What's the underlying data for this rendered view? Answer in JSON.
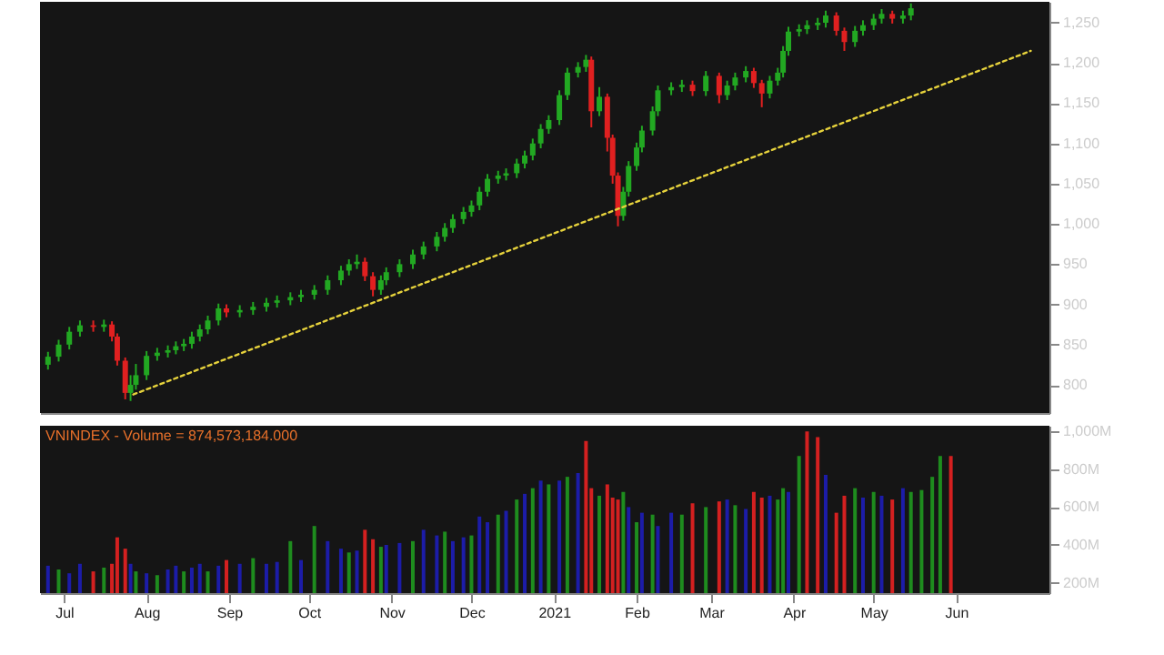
{
  "chart_data": [
    {
      "type": "candlestick",
      "tick_labels": "y",
      "xlim": [
        "2020-06-22",
        "2021-07-06"
      ],
      "colors": [
        "#22a822",
        "#22a822",
        "#22a822",
        "#22a822",
        "#e02020",
        "#22a822",
        "#e02020",
        "#e02020",
        "#e02020",
        "#22a822",
        "#22a822",
        "#22a822",
        "#22a822",
        "#22a822",
        "#22a822",
        "#22a822",
        "#22a822",
        "#22a822",
        "#22a822",
        "#22a822",
        "#e02020",
        "#22a822",
        "#22a822",
        "#22a822",
        "#22a822",
        "#22a822",
        "#22a822",
        "#22a822",
        "#22a822",
        "#22a822",
        "#22a822",
        "#22a822",
        "#e02020",
        "#e02020",
        "#22a822",
        "#22a822",
        "#22a822",
        "#22a822",
        "#22a822",
        "#22a822",
        "#22a822",
        "#22a822",
        "#22a822",
        "#22a822",
        "#22a822",
        "#22a822",
        "#22a822",
        "#22a822",
        "#22a822",
        "#22a822",
        "#22a822",
        "#22a822",
        "#22a822",
        "#22a822",
        "#22a822",
        "#22a822",
        "#22a822",
        "#e02020",
        "#22a822",
        "#e02020",
        "#e02020",
        "#e02020",
        "#22a822",
        "#22a822",
        "#22a822",
        "#22a822",
        "#22a822",
        "#22a822",
        "#22a822",
        "#22a822",
        "#e02020",
        "#22a822",
        "#e02020",
        "#22a822",
        "#22a822",
        "#22a822",
        "#e02020",
        "#e02020",
        "#22a822",
        "#22a822",
        "#22a822",
        "#22a822",
        "#22a822",
        "#22a822",
        "#22a822",
        "#22a822",
        "#e02020",
        "#e02020",
        "#22a822",
        "#22a822",
        "#22a822",
        "#22a822",
        "#e02020",
        "#22a822",
        "#22a822"
      ],
      "ylim": [
        765,
        1276
      ],
      "yticks": [
        800,
        850,
        900,
        950,
        {
          "value": 1000,
          "label": "1,000"
        },
        {
          "value": 1050,
          "label": "1,050"
        },
        {
          "value": 1100,
          "label": "1,100"
        },
        {
          "value": 1150,
          "label": "1,150"
        },
        {
          "value": 1200,
          "label": "1,200"
        },
        {
          "value": 1250,
          "label": "1,250"
        }
      ],
      "x": [
        "2020-06-25",
        "2020-06-29",
        "2020-07-03",
        "2020-07-07",
        "2020-07-12",
        "2020-07-16",
        "2020-07-19",
        "2020-07-21",
        "2020-07-24",
        "2020-07-26",
        "2020-07-28",
        "2020-08-01",
        "2020-08-05",
        "2020-08-09",
        "2020-08-12",
        "2020-08-15",
        "2020-08-18",
        "2020-08-21",
        "2020-08-24",
        "2020-08-28",
        "2020-08-31",
        "2020-09-05",
        "2020-09-10",
        "2020-09-15",
        "2020-09-19",
        "2020-09-24",
        "2020-09-28",
        "2020-10-03",
        "2020-10-08",
        "2020-10-13",
        "2020-10-16",
        "2020-10-19",
        "2020-10-22",
        "2020-10-25",
        "2020-10-28",
        "2020-10-30",
        "2020-11-04",
        "2020-11-09",
        "2020-11-13",
        "2020-11-18",
        "2020-11-21",
        "2020-11-24",
        "2020-11-28",
        "2020-12-01",
        "2020-12-04",
        "2020-12-07",
        "2020-12-11",
        "2020-12-14",
        "2020-12-18",
        "2020-12-21",
        "2020-12-24",
        "2020-12-27",
        "2020-12-30",
        "2021-01-03",
        "2021-01-06",
        "2021-01-10",
        "2021-01-13",
        "2021-01-15",
        "2021-01-18",
        "2021-01-21",
        "2021-01-23",
        "2021-01-25",
        "2021-01-27",
        "2021-01-29",
        "2021-02-01",
        "2021-02-03",
        "2021-02-07",
        "2021-02-09",
        "2021-02-14",
        "2021-02-18",
        "2021-02-22",
        "2021-02-27",
        "2021-03-04",
        "2021-03-07",
        "2021-03-10",
        "2021-03-14",
        "2021-03-17",
        "2021-03-20",
        "2021-03-23",
        "2021-03-26",
        "2021-03-28",
        "2021-03-30",
        "2021-04-03",
        "2021-04-06",
        "2021-04-10",
        "2021-04-13",
        "2021-04-17",
        "2021-04-20",
        "2021-04-24",
        "2021-04-27",
        "2021-05-01",
        "2021-05-04",
        "2021-05-08",
        "2021-05-12",
        "2021-05-15"
      ],
      "ohlc": [
        [
          825,
          841,
          819,
          835
        ],
        [
          835,
          856,
          829,
          850
        ],
        [
          850,
          872,
          844,
          866
        ],
        [
          866,
          880,
          860,
          874
        ],
        [
          874,
          880,
          866,
          872
        ],
        [
          872,
          881,
          866,
          875
        ],
        [
          875,
          879,
          854,
          860
        ],
        [
          860,
          864,
          824,
          830
        ],
        [
          830,
          834,
          782,
          790
        ],
        [
          790,
          812,
          780,
          800
        ],
        [
          800,
          826,
          794,
          812
        ],
        [
          812,
          842,
          806,
          836
        ],
        [
          836,
          846,
          830,
          840
        ],
        [
          840,
          849,
          834,
          843
        ],
        [
          843,
          854,
          838,
          848
        ],
        [
          848,
          857,
          842,
          851
        ],
        [
          851,
          866,
          845,
          860
        ],
        [
          860,
          875,
          854,
          869
        ],
        [
          869,
          886,
          863,
          880
        ],
        [
          880,
          901,
          874,
          895
        ],
        [
          895,
          900,
          884,
          890
        ],
        [
          890,
          899,
          884,
          893
        ],
        [
          893,
          903,
          887,
          897
        ],
        [
          897,
          908,
          891,
          902
        ],
        [
          902,
          911,
          896,
          905
        ],
        [
          905,
          915,
          899,
          909
        ],
        [
          909,
          918,
          903,
          912
        ],
        [
          912,
          924,
          906,
          918
        ],
        [
          918,
          936,
          912,
          930
        ],
        [
          930,
          948,
          924,
          942
        ],
        [
          942,
          956,
          936,
          950
        ],
        [
          950,
          962,
          944,
          953
        ],
        [
          953,
          958,
          929,
          935
        ],
        [
          935,
          940,
          910,
          918
        ],
        [
          918,
          936,
          912,
          930
        ],
        [
          930,
          946,
          924,
          940
        ],
        [
          940,
          956,
          934,
          950
        ],
        [
          950,
          968,
          944,
          962
        ],
        [
          962,
          978,
          956,
          972
        ],
        [
          972,
          990,
          966,
          984
        ],
        [
          984,
          1001,
          978,
          995
        ],
        [
          995,
          1012,
          989,
          1006
        ],
        [
          1006,
          1021,
          1000,
          1015
        ],
        [
          1015,
          1029,
          1009,
          1023
        ],
        [
          1023,
          1046,
          1017,
          1040
        ],
        [
          1040,
          1062,
          1034,
          1056
        ],
        [
          1056,
          1066,
          1050,
          1060
        ],
        [
          1060,
          1069,
          1054,
          1063
        ],
        [
          1063,
          1081,
          1057,
          1075
        ],
        [
          1075,
          1091,
          1069,
          1085
        ],
        [
          1085,
          1106,
          1079,
          1100
        ],
        [
          1100,
          1124,
          1094,
          1118
        ],
        [
          1118,
          1135,
          1112,
          1129
        ],
        [
          1129,
          1166,
          1123,
          1160
        ],
        [
          1160,
          1194,
          1154,
          1188
        ],
        [
          1188,
          1201,
          1182,
          1195
        ],
        [
          1195,
          1210,
          1189,
          1204
        ],
        [
          1204,
          1208,
          1120,
          1140
        ],
        [
          1140,
          1170,
          1134,
          1158
        ],
        [
          1158,
          1162,
          1090,
          1107
        ],
        [
          1107,
          1111,
          1050,
          1060
        ],
        [
          1060,
          1064,
          997,
          1010
        ],
        [
          1010,
          1046,
          1004,
          1040
        ],
        [
          1040,
          1078,
          1034,
          1072
        ],
        [
          1072,
          1101,
          1066,
          1095
        ],
        [
          1095,
          1122,
          1089,
          1116
        ],
        [
          1116,
          1146,
          1110,
          1140
        ],
        [
          1140,
          1172,
          1134,
          1166
        ],
        [
          1166,
          1176,
          1160,
          1170
        ],
        [
          1170,
          1179,
          1164,
          1173
        ],
        [
          1173,
          1178,
          1159,
          1165
        ],
        [
          1165,
          1190,
          1159,
          1184
        ],
        [
          1184,
          1188,
          1150,
          1160
        ],
        [
          1160,
          1178,
          1154,
          1172
        ],
        [
          1172,
          1188,
          1166,
          1182
        ],
        [
          1182,
          1196,
          1176,
          1190
        ],
        [
          1190,
          1194,
          1169,
          1175
        ],
        [
          1175,
          1179,
          1145,
          1162
        ],
        [
          1162,
          1184,
          1156,
          1178
        ],
        [
          1178,
          1194,
          1172,
          1188
        ],
        [
          1188,
          1221,
          1182,
          1215
        ],
        [
          1215,
          1245,
          1209,
          1239
        ],
        [
          1239,
          1248,
          1233,
          1242
        ],
        [
          1242,
          1253,
          1236,
          1247
        ],
        [
          1247,
          1256,
          1241,
          1250
        ],
        [
          1250,
          1265,
          1244,
          1259
        ],
        [
          1259,
          1263,
          1234,
          1240
        ],
        [
          1240,
          1244,
          1215,
          1226
        ],
        [
          1226,
          1246,
          1220,
          1240
        ],
        [
          1240,
          1253,
          1234,
          1247
        ],
        [
          1247,
          1261,
          1241,
          1255
        ],
        [
          1255,
          1267,
          1249,
          1261
        ],
        [
          1261,
          1265,
          1249,
          1255
        ],
        [
          1255,
          1265,
          1249,
          1259
        ],
        [
          1259,
          1274,
          1253,
          1268
        ]
      ],
      "series": [
        {
          "type": "line",
          "color": "#e6d23c",
          "line_style": "dotted",
          "x": [
            "2020-07-27",
            "2021-06-29"
          ],
          "values": [
            788,
            1215
          ]
        }
      ]
    },
    {
      "type": "bar",
      "xlim": [
        "2020-06-22",
        "2021-07-06"
      ],
      "xticks": [
        {
          "value": "2020-07-01",
          "label": "Jul"
        },
        {
          "value": "2020-08-01",
          "label": "Aug"
        },
        {
          "value": "2020-09-01",
          "label": "Sep"
        },
        {
          "value": "2020-10-01",
          "label": "Oct"
        },
        {
          "value": "2020-11-01",
          "label": "Nov"
        },
        {
          "value": "2020-12-01",
          "label": "Dec"
        },
        {
          "value": "2021-01-01",
          "label": "2021"
        },
        {
          "value": "2021-02-01",
          "label": "Feb"
        },
        {
          "value": "2021-03-01",
          "label": "Mar"
        },
        {
          "value": "2021-04-01",
          "label": "Apr"
        },
        {
          "value": "2021-05-01",
          "label": "May"
        },
        {
          "value": "2021-06-01",
          "label": "Jun"
        }
      ],
      "ylim": [
        145,
        1030
      ],
      "yticks": [
        {
          "value": 200,
          "label": "200M"
        },
        {
          "value": 400,
          "label": "400M"
        },
        {
          "value": 600,
          "label": "600M"
        },
        {
          "value": 800,
          "label": "800M"
        },
        {
          "value": 1000,
          "label": "1,000M"
        }
      ],
      "annotations": [
        "VNINDEX - Volume = 874,573,184.000"
      ],
      "x": [
        "2020-06-25",
        "2020-06-29",
        "2020-07-03",
        "2020-07-07",
        "2020-07-12",
        "2020-07-16",
        "2020-07-19",
        "2020-07-21",
        "2020-07-24",
        "2020-07-26",
        "2020-07-28",
        "2020-08-01",
        "2020-08-05",
        "2020-08-09",
        "2020-08-12",
        "2020-08-15",
        "2020-08-18",
        "2020-08-21",
        "2020-08-24",
        "2020-08-28",
        "2020-08-31",
        "2020-09-05",
        "2020-09-10",
        "2020-09-15",
        "2020-09-19",
        "2020-09-24",
        "2020-09-28",
        "2020-10-03",
        "2020-10-08",
        "2020-10-13",
        "2020-10-16",
        "2020-10-19",
        "2020-10-22",
        "2020-10-25",
        "2020-10-28",
        "2020-10-30",
        "2020-11-04",
        "2020-11-09",
        "2020-11-13",
        "2020-11-18",
        "2020-11-21",
        "2020-11-24",
        "2020-11-28",
        "2020-12-01",
        "2020-12-04",
        "2020-12-07",
        "2020-12-11",
        "2020-12-14",
        "2020-12-18",
        "2020-12-21",
        "2020-12-24",
        "2020-12-27",
        "2020-12-30",
        "2021-01-03",
        "2021-01-06",
        "2021-01-10",
        "2021-01-13",
        "2021-01-15",
        "2021-01-18",
        "2021-01-21",
        "2021-01-23",
        "2021-01-25",
        "2021-01-27",
        "2021-01-29",
        "2021-02-01",
        "2021-02-03",
        "2021-02-07",
        "2021-02-09",
        "2021-02-14",
        "2021-02-18",
        "2021-02-22",
        "2021-02-27",
        "2021-03-04",
        "2021-03-07",
        "2021-03-10",
        "2021-03-14",
        "2021-03-17",
        "2021-03-20",
        "2021-03-23",
        "2021-03-26",
        "2021-03-28",
        "2021-03-30",
        "2021-04-03",
        "2021-04-06",
        "2021-04-10",
        "2021-04-13",
        "2021-04-17",
        "2021-04-20",
        "2021-04-24",
        "2021-04-27",
        "2021-05-01",
        "2021-05-04",
        "2021-05-08",
        "2021-05-12",
        "2021-05-15",
        "2021-05-19",
        "2021-05-23",
        "2021-05-26",
        "2021-05-30"
      ],
      "values": [
        290,
        270,
        250,
        300,
        260,
        280,
        300,
        440,
        380,
        300,
        260,
        250,
        240,
        270,
        290,
        260,
        280,
        300,
        260,
        290,
        320,
        300,
        330,
        300,
        310,
        420,
        320,
        500,
        420,
        380,
        360,
        370,
        480,
        430,
        390,
        400,
        410,
        420,
        480,
        450,
        470,
        420,
        440,
        450,
        550,
        520,
        560,
        580,
        640,
        670,
        700,
        740,
        720,
        740,
        760,
        780,
        950,
        700,
        660,
        720,
        650,
        640,
        680,
        600,
        520,
        570,
        560,
        500,
        570,
        560,
        620,
        600,
        630,
        640,
        610,
        590,
        680,
        650,
        660,
        640,
        700,
        680,
        870,
        1000,
        970,
        770,
        570,
        660,
        700,
        650,
        680,
        660,
        640,
        700,
        680,
        690,
        760,
        870,
        870
      ],
      "colors": [
        "#1c1ca8",
        "#1e8c1e",
        "#1c1ca8",
        "#1c1ca8",
        "#d42020",
        "#1e8c1e",
        "#d42020",
        "#d42020",
        "#d42020",
        "#1c1ca8",
        "#1e8c1e",
        "#1c1ca8",
        "#1e8c1e",
        "#1c1ca8",
        "#1c1ca8",
        "#1e8c1e",
        "#1c1ca8",
        "#1c1ca8",
        "#1e8c1e",
        "#1c1ca8",
        "#d42020",
        "#1c1ca8",
        "#1e8c1e",
        "#1c1ca8",
        "#1c1ca8",
        "#1e8c1e",
        "#1c1ca8",
        "#1e8c1e",
        "#1c1ca8",
        "#1c1ca8",
        "#1e8c1e",
        "#1c1ca8",
        "#d42020",
        "#d42020",
        "#1e8c1e",
        "#1c1ca8",
        "#1c1ca8",
        "#1e8c1e",
        "#1c1ca8",
        "#1c1ca8",
        "#1e8c1e",
        "#1c1ca8",
        "#1c1ca8",
        "#1e8c1e",
        "#1c1ca8",
        "#1c1ca8",
        "#1e8c1e",
        "#1c1ca8",
        "#1e8c1e",
        "#1c1ca8",
        "#1e8c1e",
        "#1c1ca8",
        "#1e8c1e",
        "#1c1ca8",
        "#1e8c1e",
        "#1c1ca8",
        "#d42020",
        "#d42020",
        "#1e8c1e",
        "#d42020",
        "#d42020",
        "#d42020",
        "#1e8c1e",
        "#1c1ca8",
        "#1e8c1e",
        "#1c1ca8",
        "#1e8c1e",
        "#1c1ca8",
        "#1c1ca8",
        "#1e8c1e",
        "#d42020",
        "#1e8c1e",
        "#d42020",
        "#1c1ca8",
        "#1e8c1e",
        "#1c1ca8",
        "#d42020",
        "#d42020",
        "#1c1ca8",
        "#1e8c1e",
        "#1e8c1e",
        "#1c1ca8",
        "#1e8c1e",
        "#d42020",
        "#d42020",
        "#1c1ca8",
        "#d42020",
        "#d42020",
        "#1e8c1e",
        "#1c1ca8",
        "#1e8c1e",
        "#1c1ca8",
        "#d42020",
        "#1c1ca8",
        "#1e8c1e",
        "#1e8c1e",
        "#1e8c1e",
        "#1e8c1e",
        "#d42020"
      ]
    }
  ]
}
